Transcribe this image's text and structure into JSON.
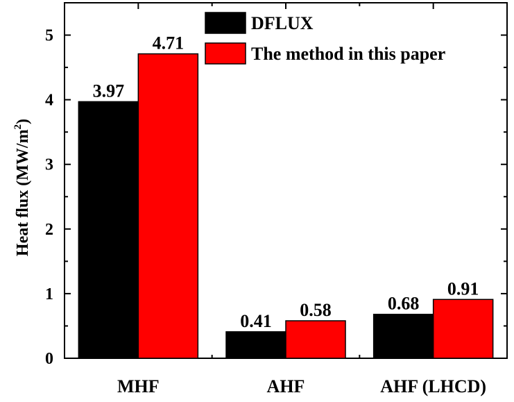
{
  "chart_data": {
    "type": "bar",
    "title": "",
    "xlabel": "",
    "ylabel": "Heat flux (MW/m",
    "ylabel_sup": "2",
    "ylabel_suffix": ")",
    "categories": [
      "MHF",
      "AHF",
      "AHF (LHCD)"
    ],
    "series": [
      {
        "name": "DFLUX",
        "values": [
          3.97,
          0.41,
          0.68
        ],
        "labels": [
          "3.97",
          "0.41",
          "0.68"
        ],
        "color": "#000000"
      },
      {
        "name": "The method in this paper",
        "values": [
          4.71,
          0.58,
          0.91
        ],
        "labels": [
          "4.71",
          "0.58",
          "0.91"
        ],
        "color": "#ff0000"
      }
    ],
    "ylim": [
      0,
      5.5
    ],
    "yticks": [
      0,
      1,
      2,
      3,
      4,
      5
    ],
    "ytick_labels": [
      "0",
      "1",
      "2",
      "3",
      "4",
      "5"
    ],
    "grid": false,
    "legend_position": "top-right"
  }
}
